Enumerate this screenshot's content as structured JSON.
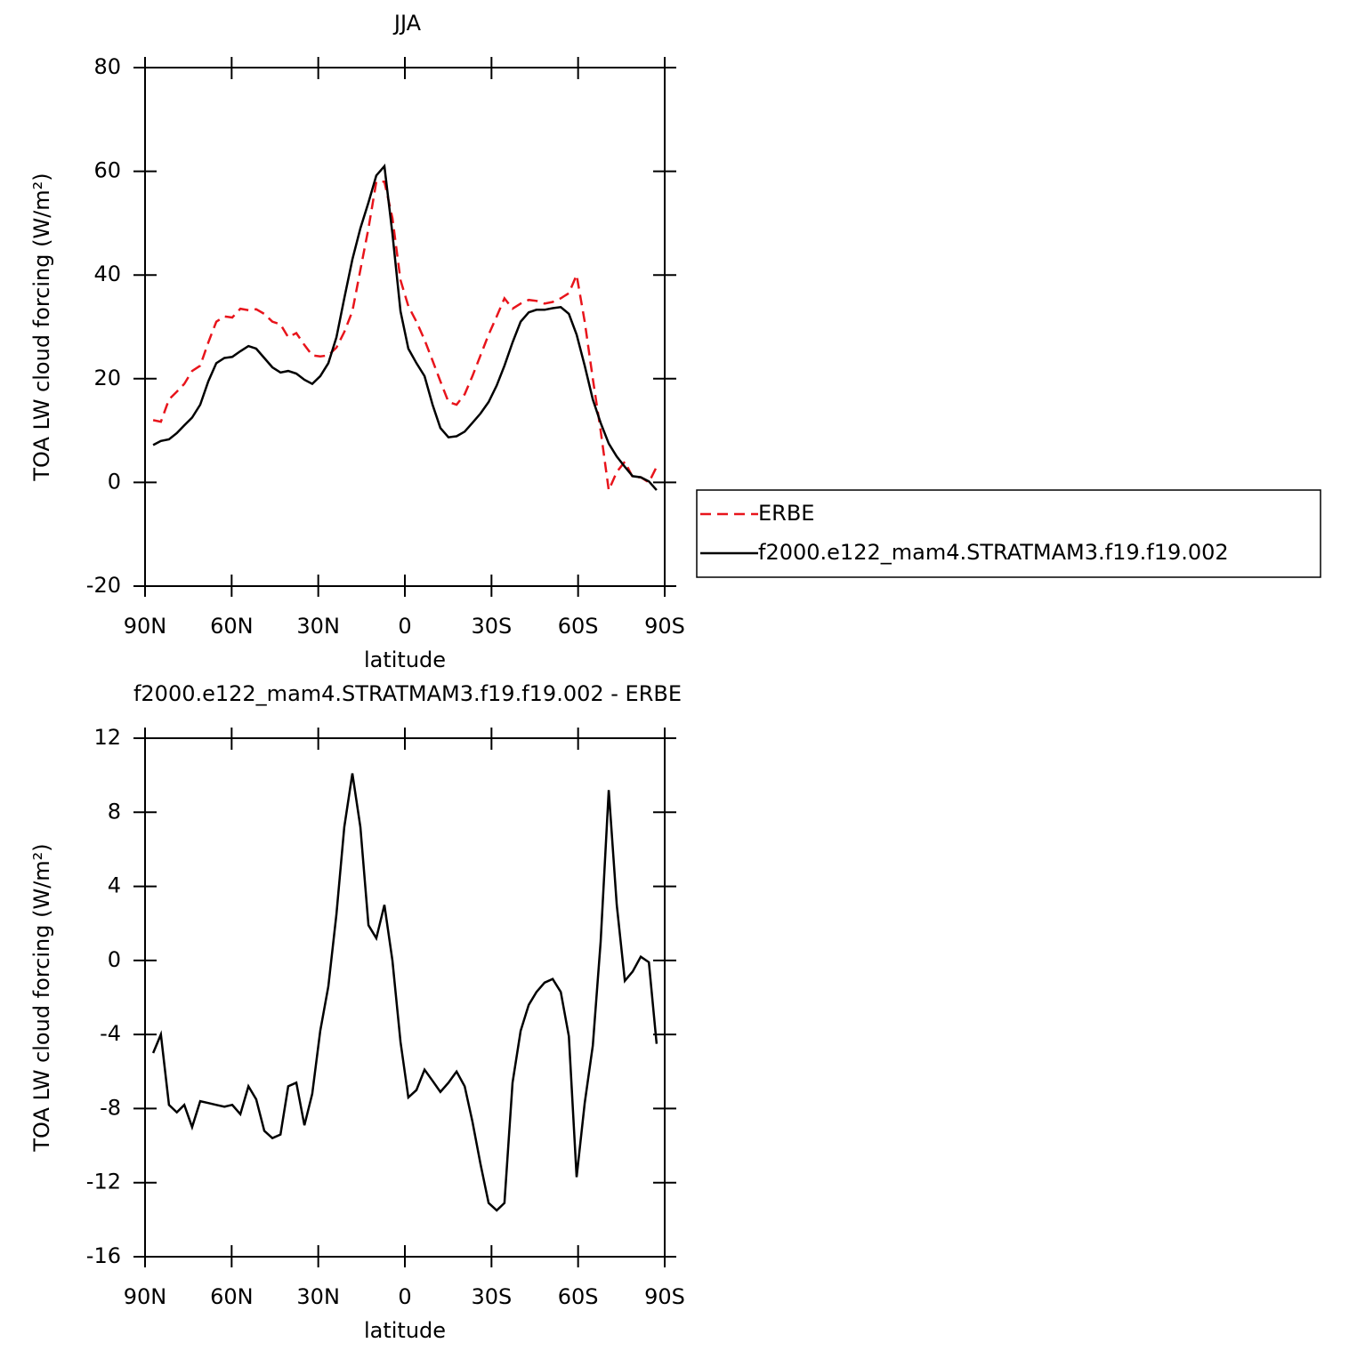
{
  "chart_data": [
    {
      "type": "line",
      "title": "JJA",
      "xlabel": "latitude",
      "ylabel": "TOA LW cloud forcing (W/m²)",
      "x": [
        87.2,
        84.5,
        81.7,
        79,
        76.4,
        73.7,
        70.9,
        68.1,
        65.3,
        62.5,
        59.8,
        57,
        54.2,
        51.5,
        48.7,
        45.9,
        43.1,
        40.4,
        37.6,
        34.8,
        32.1,
        29.3,
        26.5,
        23.7,
        21,
        18.2,
        15.4,
        12.6,
        9.9,
        7.1,
        4.3,
        1.5,
        -1.2,
        -4,
        -6.8,
        -9.6,
        -12.3,
        -15.1,
        -17.9,
        -20.7,
        -23.4,
        -26.2,
        -29,
        -31.8,
        -34.5,
        -37.3,
        -40.1,
        -42.9,
        -45.6,
        -48.4,
        -51.2,
        -54,
        -56.8,
        -59.5,
        -62.3,
        -65.1,
        -67.8,
        -70.6,
        -73.4,
        -76.2,
        -78.9,
        -81.7,
        -84.5,
        -87.2
      ],
      "series": [
        {
          "name": "ERBE",
          "color": "#e8141b",
          "line_style": "dashed",
          "values": [
            12,
            11.7,
            16,
            17.5,
            19,
            21.5,
            22.5,
            27,
            31,
            32,
            31.8,
            33.5,
            33.2,
            33.4,
            32.5,
            31,
            30.5,
            28,
            28.8,
            26.5,
            24.5,
            24.3,
            24.5,
            26,
            29,
            33,
            41,
            49,
            58,
            58,
            51,
            39,
            34,
            31,
            27.5,
            23.5,
            19.5,
            15.5,
            15,
            17,
            20.5,
            24.5,
            28.5,
            32,
            35.5,
            33.5,
            34.5,
            35.2,
            35,
            34.5,
            34.8,
            35.5,
            36.5,
            40,
            31,
            20,
            10,
            -1.5,
            2,
            4,
            1,
            1,
            0,
            3
          ]
        },
        {
          "name": "f2000.e122_mam4.STRATMAM3.f19.f19.002",
          "color": "#000000",
          "line_style": "solid",
          "values": [
            7.2,
            8,
            8.3,
            9.5,
            11,
            12.5,
            15,
            19.5,
            23,
            24,
            24.2,
            25.3,
            26.3,
            25.8,
            24,
            22.2,
            21.2,
            21.5,
            21,
            19.8,
            19,
            20.5,
            23,
            28,
            35.5,
            43,
            49,
            54,
            59.2,
            61,
            48,
            33,
            25.8,
            23,
            20.5,
            15,
            10.5,
            8.7,
            8.9,
            9.8,
            11.5,
            13.3,
            15.5,
            18.7,
            22.5,
            27,
            31,
            32.8,
            33.3,
            33.3,
            33.6,
            33.8,
            32.5,
            28.5,
            22.5,
            16,
            11.5,
            7.5,
            5,
            3,
            1.2,
            1,
            0.2,
            -1.5
          ]
        }
      ],
      "xlim": [
        90,
        -90
      ],
      "xticks": [
        {
          "value": 90,
          "label": "90N"
        },
        {
          "value": 60,
          "label": "60N"
        },
        {
          "value": 30,
          "label": "30N"
        },
        0,
        {
          "value": -30,
          "label": "30S"
        },
        {
          "value": -60,
          "label": "60S"
        },
        {
          "value": -90,
          "label": "90S"
        }
      ],
      "ylim": [
        -20,
        80
      ],
      "yticks": [
        -20,
        0,
        20,
        40,
        60,
        80
      ],
      "legend": "right"
    },
    {
      "type": "line",
      "title": "f2000.e122_mam4.STRATMAM3.f19.f19.002 - ERBE",
      "xlabel": "latitude",
      "ylabel": "TOA LW cloud forcing (W/m²)",
      "x": [
        87.2,
        84.5,
        81.7,
        79,
        76.4,
        73.7,
        70.9,
        68.1,
        65.3,
        62.5,
        59.8,
        57,
        54.2,
        51.5,
        48.7,
        45.9,
        43.1,
        40.4,
        37.6,
        34.8,
        32.1,
        29.3,
        26.5,
        23.7,
        21,
        18.2,
        15.4,
        12.6,
        9.9,
        7.1,
        4.3,
        1.5,
        -1.2,
        -4,
        -6.8,
        -9.6,
        -12.3,
        -15.1,
        -17.9,
        -20.7,
        -23.4,
        -26.2,
        -29,
        -31.8,
        -34.5,
        -37.3,
        -40.1,
        -42.9,
        -45.6,
        -48.4,
        -51.2,
        -54,
        -56.8,
        -59.5,
        -62.3,
        -65.1,
        -67.8,
        -70.6,
        -73.4,
        -76.2,
        -78.9,
        -81.7,
        -84.5,
        -87.2
      ],
      "series": [
        {
          "color": "#000000",
          "line_style": "solid",
          "values": [
            -5,
            -4,
            -7.8,
            -8.2,
            -7.8,
            -9,
            -7.6,
            -7.7,
            -7.8,
            -7.9,
            -7.8,
            -8.3,
            -6.8,
            -7.5,
            -9.2,
            -9.6,
            -9.4,
            -6.8,
            -6.6,
            -8.9,
            -7.2,
            -3.8,
            -1.4,
            2.5,
            7.2,
            10.1,
            7.2,
            1.9,
            1.2,
            3,
            0,
            -4.4,
            -7.4,
            -7,
            -5.9,
            -6.5,
            -7.1,
            -6.6,
            -6,
            -6.8,
            -8.7,
            -11,
            -13.1,
            -13.5,
            -13.1,
            -6.6,
            -3.8,
            -2.4,
            -1.7,
            -1.2,
            -1,
            -1.7,
            -4.1,
            -11.7,
            -7.7,
            -4.6,
            1,
            9.2,
            3,
            -1.1,
            -0.6,
            0.2,
            -0.1,
            -4.5
          ]
        }
      ],
      "xlim": [
        90,
        -90
      ],
      "xticks": [
        {
          "value": 90,
          "label": "90N"
        },
        {
          "value": 60,
          "label": "60N"
        },
        {
          "value": 30,
          "label": "30N"
        },
        0,
        {
          "value": -30,
          "label": "30S"
        },
        {
          "value": -60,
          "label": "60S"
        },
        {
          "value": -90,
          "label": "90S"
        }
      ],
      "ylim": [
        -16,
        12
      ],
      "yticks": [
        -16,
        -12,
        -8,
        -4,
        0,
        4,
        8,
        12
      ]
    }
  ]
}
